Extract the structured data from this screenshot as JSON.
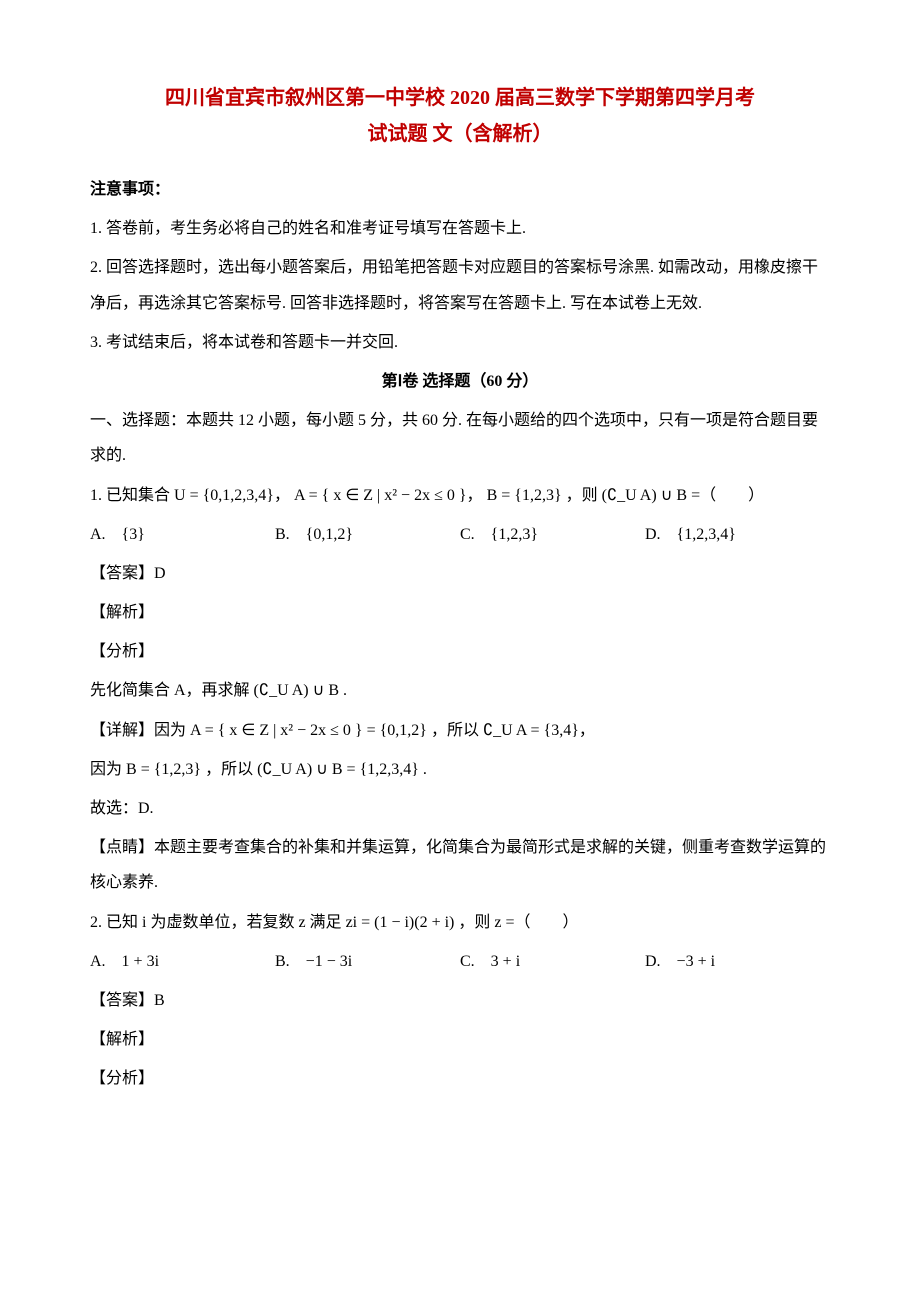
{
  "title_line1": "四川省宜宾市叙州区第一中学校 2020 届高三数学下学期第四学月考",
  "title_line2": "试试题 文（含解析）",
  "notice_header": "注意事项：",
  "notice_1": "1. 答卷前，考生务必将自己的姓名和准考证号填写在答题卡上.",
  "notice_2": "2. 回答选择题时，选出每小题答案后，用铅笔把答题卡对应题目的答案标号涂黑. 如需改动，用橡皮擦干净后，再选涂其它答案标号. 回答非选择题时，将答案写在答题卡上. 写在本试卷上无效.",
  "notice_3": "3. 考试结束后，将本试卷和答题卡一并交回.",
  "part_header": "第Ⅰ卷 选择题（60 分）",
  "section_intro": "一、选择题：本题共 12 小题，每小题 5 分，共 60 分. 在每小题给的四个选项中，只有一项是符合题目要求的.",
  "q1": {
    "stem_prefix": "1. 已知集合 ",
    "set_U": "U = {0,1,2,3,4}",
    "set_A": "A = { x ∈ Z | x² − 2x ≤ 0 }",
    "set_B": "B = {1,2,3}",
    "tail": "，则 (∁_U A) ∪ B =（　　）",
    "optA": "A.　{3}",
    "optB": "B.　{0,1,2}",
    "optC": "C.　{1,2,3}",
    "optD": "D.　{1,2,3,4}",
    "answer": "【答案】D",
    "jiexi": "【解析】",
    "fenxi": "【分析】",
    "fenxi_body": "先化简集合 A，再求解 (∁_U A) ∪ B .",
    "detail_prefix": "【详解】因为 ",
    "detail_A_eq": "A = { x ∈ Z | x² − 2x ≤ 0 } = {0,1,2}",
    "detail_mid": "，所以 ",
    "detail_CuA": "∁_U A = {3,4}",
    "detail_line2_prefix": "因为 ",
    "detail_B": "B = {1,2,3}",
    "detail_line2_mid": "，所以 ",
    "detail_union": "(∁_U A) ∪ B = {1,2,3,4}",
    "guxuan": "故选：D.",
    "dianjing": "【点睛】本题主要考查集合的补集和并集运算，化简集合为最简形式是求解的关键，侧重考查数学运算的核心素养."
  },
  "q2": {
    "stem_prefix": "2. 已知 i 为虚数单位，若复数 z 满足 ",
    "eq": "zi = (1 − i)(2 + i)",
    "tail": "，则 z =（　　）",
    "optA": "A.　1 + 3i",
    "optB": "B.　−1 − 3i",
    "optC": "C.　3 + i",
    "optD": "D.　−3 + i",
    "answer": "【答案】B",
    "jiexi": "【解析】",
    "fenxi": "【分析】"
  }
}
